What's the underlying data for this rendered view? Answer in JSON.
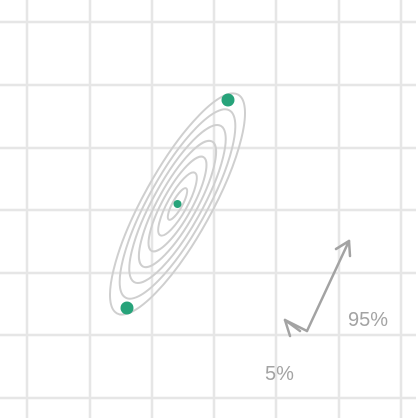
{
  "chart_data": {
    "type": "scatter",
    "title": "",
    "xlabel": "",
    "ylabel": "",
    "grid": true,
    "axis_ticks_visible": false,
    "contours": {
      "levels": 7,
      "center": [
        0,
        0
      ],
      "angle_deg": 61,
      "semi_major_max": 125,
      "semi_minor_max": 34
    },
    "points": [
      {
        "x": 0,
        "y": 0,
        "size": "small"
      },
      {
        "x": 1,
        "y": 2,
        "size": "large"
      },
      {
        "x": -1,
        "y": -2,
        "size": "large"
      }
    ],
    "annotations": [
      {
        "text": "95%"
      },
      {
        "text": "5%"
      }
    ],
    "colors": {
      "grid": "#e6e6e6",
      "contour": "#cfcfcf",
      "point": "#27a37a",
      "annotation": "#a3a3a3",
      "background": "#ffffff"
    }
  }
}
